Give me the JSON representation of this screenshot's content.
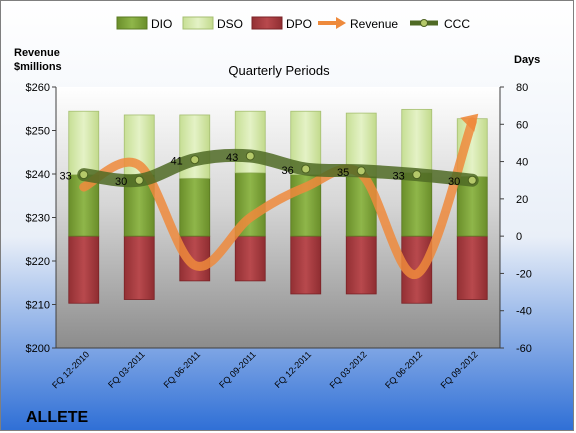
{
  "chart_data": {
    "type": "bar",
    "title": "Quarterly Periods",
    "company": "ALLETE",
    "left_axis_label": [
      "Revenue",
      "$millions"
    ],
    "right_axis_label": "Days",
    "left_ticks": [
      "$200",
      "$210",
      "$220",
      "$230",
      "$240",
      "$250",
      "$260"
    ],
    "right_ticks": [
      "-60",
      "-40",
      "-20",
      "0",
      "20",
      "40",
      "60",
      "80"
    ],
    "left_range": [
      200,
      260
    ],
    "right_range": [
      -60,
      80
    ],
    "categories": [
      "FQ 12-2010",
      "FQ 03-2011",
      "FQ 06-2011",
      "FQ 09-2011",
      "FQ 12-2011",
      "FQ 03-2012",
      "FQ 06-2012",
      "FQ 09-2012"
    ],
    "legend": [
      {
        "key": "dio",
        "label": "DIO"
      },
      {
        "key": "dso",
        "label": "DSO"
      },
      {
        "key": "dpo",
        "label": "DPO"
      },
      {
        "key": "revenue",
        "label": "Revenue"
      },
      {
        "key": "ccc",
        "label": "CCC"
      }
    ],
    "series": [
      {
        "name": "DIO",
        "axis": "right",
        "values": [
          33,
          33,
          31,
          34,
          33,
          32,
          34,
          32
        ]
      },
      {
        "name": "DSO",
        "axis": "right",
        "values": [
          34,
          32,
          34,
          33,
          34,
          34,
          34,
          31
        ]
      },
      {
        "name": "DPO",
        "axis": "right",
        "values": [
          -36,
          -34,
          -24,
          -24,
          -31,
          -31,
          -36,
          -34
        ]
      },
      {
        "name": "Revenue",
        "axis": "left",
        "values": [
          237,
          242,
          219,
          230,
          237,
          240,
          217,
          252
        ]
      },
      {
        "name": "CCC",
        "axis": "right",
        "values": [
          33,
          30,
          41,
          43,
          36,
          35,
          33,
          30
        ]
      }
    ],
    "ccc_labels": [
      "33",
      "30",
      "41",
      "43",
      "36",
      "35",
      "33",
      "30"
    ],
    "colors": {
      "dio": "#7ea436",
      "dso": "#d3e8a8",
      "dpo": "#a53a3e",
      "revenue": "#ee8a3c",
      "ccc": "#4f6a24"
    }
  }
}
